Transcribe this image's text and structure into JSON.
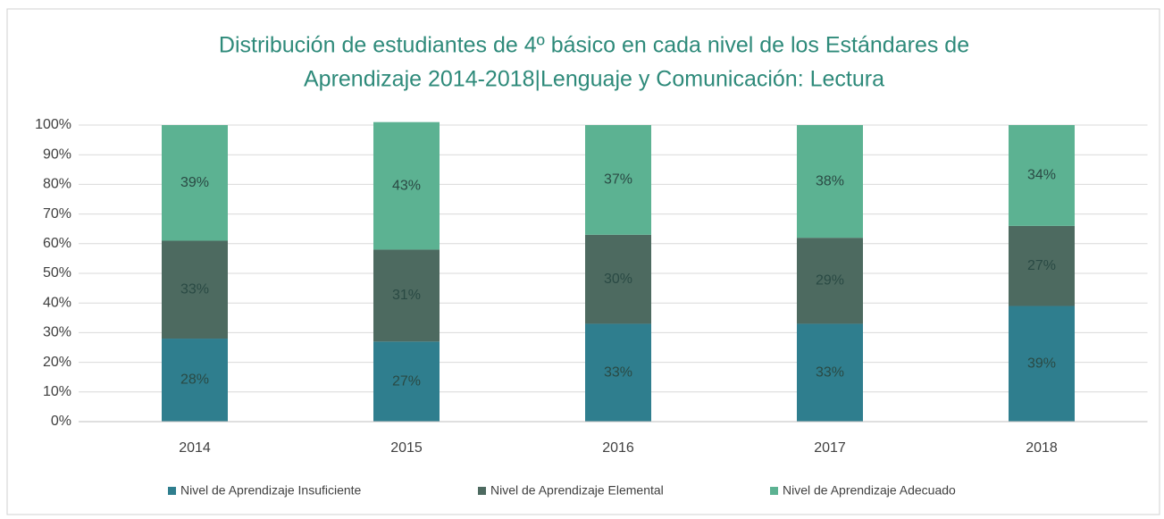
{
  "chart_data": {
    "type": "stacked_bar",
    "title": "Distribución de estudiantes de 4º básico en cada nivel de los Estándares de",
    "subtitle": "Aprendizaje 2014-2018|Lenguaje y Comunicación: Lectura",
    "categories": [
      "2014",
      "2015",
      "2016",
      "2017",
      "2018"
    ],
    "series": [
      {
        "name": "Nivel de Aprendizaje Insuficiente",
        "color": "#2f7e8e",
        "values": [
          28,
          27,
          33,
          33,
          39
        ],
        "value_labels": [
          "28%",
          "27%",
          "33%",
          "33%",
          "39%"
        ]
      },
      {
        "name": "Nivel de Aprendizaje Elemental",
        "color": "#4d6a60",
        "values": [
          33,
          31,
          30,
          29,
          27
        ],
        "value_labels": [
          "33%",
          "31%",
          "30%",
          "29%",
          "27%"
        ]
      },
      {
        "name": "Nivel de Aprendizaje Adecuado",
        "color": "#5cb292",
        "values": [
          39,
          43,
          37,
          38,
          34
        ],
        "value_labels": [
          "39%",
          "43%",
          "37%",
          "38%",
          "34%"
        ]
      }
    ],
    "ylim": [
      0,
      100
    ],
    "yticks": [
      {
        "value": 0,
        "label": "0%"
      },
      {
        "value": 10,
        "label": "10%"
      },
      {
        "value": 20,
        "label": "20%"
      },
      {
        "value": 30,
        "label": "30%"
      },
      {
        "value": 40,
        "label": "40%"
      },
      {
        "value": 50,
        "label": "50%"
      },
      {
        "value": 60,
        "label": "60%"
      },
      {
        "value": 70,
        "label": "70%"
      },
      {
        "value": 80,
        "label": "80%"
      },
      {
        "value": 90,
        "label": "90%"
      },
      {
        "value": 100,
        "label": "100%"
      }
    ],
    "grid": true,
    "legend": "bottom"
  }
}
